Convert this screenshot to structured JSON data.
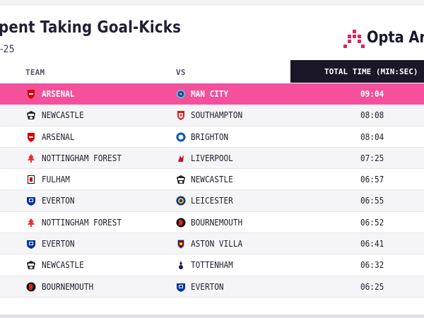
{
  "header": {
    "title": "pent Taking Goal-Kicks",
    "subtitle": "-25",
    "logo_text": "Opta Ana"
  },
  "columns": {
    "team": "TEAM",
    "vs": "VS",
    "time": "TOTAL TIME (MIN:SEC)"
  },
  "colors": {
    "highlight": "#f4509c",
    "header_dark": "#1b1628",
    "brand": "#e0245e"
  },
  "rows": [
    {
      "team": "ARSENAL",
      "team_icon": "arsenal-crest-icon",
      "opponent": "MAN CITY",
      "opponent_icon": "man-city-crest-icon",
      "time": "09:04",
      "highlight": true
    },
    {
      "team": "NEWCASTLE",
      "team_icon": "newcastle-crest-icon",
      "opponent": "SOUTHAMPTON",
      "opponent_icon": "southampton-crest-icon",
      "time": "08:08"
    },
    {
      "team": "ARSENAL",
      "team_icon": "arsenal-crest-icon",
      "opponent": "BRIGHTON",
      "opponent_icon": "brighton-crest-icon",
      "time": "08:04"
    },
    {
      "team": "NOTTINGHAM FOREST",
      "team_icon": "nottingham-forest-crest-icon",
      "opponent": "LIVERPOOL",
      "opponent_icon": "liverpool-crest-icon",
      "time": "07:25"
    },
    {
      "team": "FULHAM",
      "team_icon": "fulham-crest-icon",
      "opponent": "NEWCASTLE",
      "opponent_icon": "newcastle-crest-icon",
      "time": "06:57"
    },
    {
      "team": "EVERTON",
      "team_icon": "everton-crest-icon",
      "opponent": "LEICESTER",
      "opponent_icon": "leicester-crest-icon",
      "time": "06:55"
    },
    {
      "team": "NOTTINGHAM FOREST",
      "team_icon": "nottingham-forest-crest-icon",
      "opponent": "BOURNEMOUTH",
      "opponent_icon": "bournemouth-crest-icon",
      "time": "06:52"
    },
    {
      "team": "EVERTON",
      "team_icon": "everton-crest-icon",
      "opponent": "ASTON VILLA",
      "opponent_icon": "aston-villa-crest-icon",
      "time": "06:41"
    },
    {
      "team": "NEWCASTLE",
      "team_icon": "newcastle-crest-icon",
      "opponent": "TOTTENHAM",
      "opponent_icon": "tottenham-crest-icon",
      "time": "06:32"
    },
    {
      "team": "BOURNEMOUTH",
      "team_icon": "bournemouth-crest-icon",
      "opponent": "EVERTON",
      "opponent_icon": "everton-crest-icon",
      "time": "06:25"
    }
  ]
}
